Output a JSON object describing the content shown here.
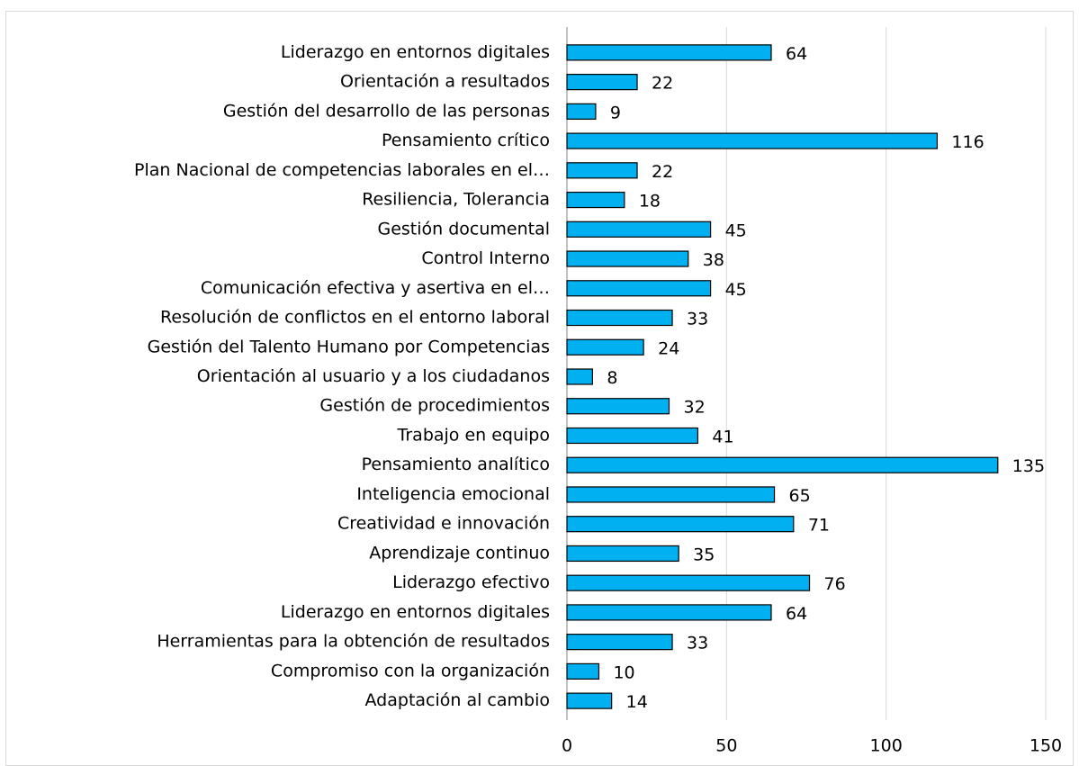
{
  "chart_data": {
    "type": "bar",
    "categories": [
      "Liderazgo en entornos digitales",
      "Orientación a resultados",
      "Gestión del desarrollo de las personas",
      "Pensamiento crítico",
      "Plan Nacional de competencias laborales en el…",
      "Resiliencia, Tolerancia",
      "Gestión documental",
      "Control Interno",
      "Comunicación efectiva y asertiva en el…",
      "Resolución de conflictos en el entorno laboral",
      "Gestión del Talento Humano por Competencias",
      "Orientación al usuario y a los ciudadanos",
      "Gestión de procedimientos",
      "Trabajo en equipo",
      "Pensamiento analítico",
      "Inteligencia emocional",
      "Creatividad e innovación",
      "Aprendizaje continuo",
      "Liderazgo efectivo",
      "Liderazgo en entornos digitales",
      "Herramientas para la obtención de resultados",
      "Compromiso con la organización",
      "Adaptación al cambio"
    ],
    "values": [
      64,
      22,
      9,
      116,
      22,
      18,
      45,
      38,
      45,
      33,
      24,
      8,
      32,
      41,
      135,
      65,
      71,
      35,
      76,
      64,
      33,
      10,
      14
    ],
    "color": "#00b0f0",
    "xlim": [
      0,
      150
    ],
    "xticks": [
      0,
      50,
      100,
      150
    ],
    "grid": true
  }
}
